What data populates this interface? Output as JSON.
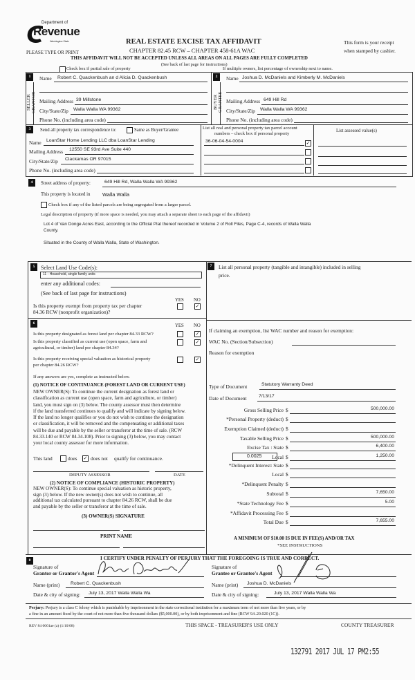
{
  "header": {
    "logo_text_1": "Department of",
    "logo_text_2": "Revenue",
    "logo_text_3": "Washington State",
    "please_type": "PLEASE TYPE OR PRINT",
    "title": "REAL ESTATE EXCISE TAX AFFIDAVIT",
    "chapter": "CHAPTER 82.45 RCW – CHAPTER 458-61A WAC",
    "receipt_1": "This form is your receipt",
    "receipt_2": "when stamped by cashier.",
    "warning": "THIS AFFIDAVIT WILL NOT BE ACCEPTED UNLESS ALL AREAS ON ALL PAGES ARE FULLY COMPLETED",
    "see_back": "(See back of last page for instructions)",
    "partial_sale_label": "Check box if partial sale of property",
    "partial_sale_checked": false,
    "multiple_owners": "If multiple owners, list percentage of ownership next to name."
  },
  "seller": {
    "number": "1",
    "side_label_1": "SELLER",
    "side_label_2": "GRANTOR",
    "name_label": "Name",
    "name": "Robert C. Quackenbush an d Alicia D. Quackenbush",
    "mailing_label": "Mailing Address",
    "mailing": "39 Millstone",
    "city_label": "City/State/Zip",
    "city": "Walla Walla WA 99362",
    "phone_label": "Phone No. (including area code)"
  },
  "buyer": {
    "number": "2",
    "side_label_1": "BUYER",
    "side_label_2": "GRANTEE",
    "name_label": "Name",
    "name": "Joshua D. McDaniels and Kimberly M. McDaniels",
    "mailing_label": "Mailing Address",
    "mailing": "649 Hill Rd",
    "city_label": "City/State/Zip",
    "city": "Walla Walla WA 99362",
    "phone_label": "Phone No. (including area code)"
  },
  "correspondence": {
    "number": "3",
    "send_label": "Send all property tax correspondence to:",
    "same_as_label": "Same as Buyer/Grantee",
    "same_as_checked": false,
    "name_label": "Name",
    "name": "LoanStar Home Lending LLC dba LoanStar Lending",
    "mailing_label": "Mailing Address",
    "mailing": "12550 SE 93rd Ave Suite 440",
    "city_label": "City/State/Zip",
    "city": "Clackamas OR 97015",
    "phone_label": "Phone No. (including area code)",
    "parcel_header_1": "List all real and personal property tax parcel account",
    "parcel_header_2": "numbers – check box if personal property",
    "assessed_header": "List assessed value(s)",
    "parcels": [
      {
        "number": "36-06-04-54-0004",
        "personal": true
      },
      {
        "number": "",
        "personal": false
      },
      {
        "number": "",
        "personal": false
      },
      {
        "number": "",
        "personal": false
      }
    ]
  },
  "property": {
    "number": "4",
    "street_label": "Street address of property:",
    "street": "649 Hill Rd, Walla Walla WA 99362",
    "located_label": "This property is located in",
    "located": "Walla Walla",
    "segregated_label": "Check box if any of the listed parcels are being segregated from a larger parcel.",
    "segregated_checked": false,
    "legal_label": "Legal description of property (if more space is needed, you may attach a separate sheet to each page of the affidavit)",
    "legal_1": "Lot 4 of Van Donge Acres East, according to the Official Plat thereof recorded in Volume 2 of Roll Files, Page C-4, records of Walla Walla",
    "legal_2": "County.",
    "legal_3": "Situated in the County of Walla Walla, State of Washington."
  },
  "land_use": {
    "number": "5",
    "select_label": "Select Land Use Code(s):",
    "code": "11 - Household, single family units",
    "additional_label": "enter any additional codes:",
    "see_back": "(See back of last page for instructions)",
    "yes": "YES",
    "no": "NO",
    "exempt_q_1": "Is this property exempt from property tax per chapter",
    "exempt_q_2": "84.36 RCW (nonprofit organization)?",
    "exempt_answer": "no"
  },
  "designation": {
    "number": "6",
    "yes": "YES",
    "no": "NO",
    "q1": "Is this property designated as forest land per chapter 84.33 RCW?",
    "q2_1": "Is this property classified as current use (open space, farm and",
    "q2_2": "agricultural, or timber) land per chapter 84.34?",
    "q3_1": "Is this property receiving special valuation as historical property",
    "q3_2": "per chapter 84.26 RCW?",
    "answers": [
      "no",
      "no",
      "no"
    ],
    "if_yes": "If any answers are yes, complete as instructed below.",
    "notice1_title": "(1) NOTICE OF CONTINUANCE  (FOREST LAND OR CURRENT USE)",
    "notice1_lines": [
      "NEW OWNER(S): To continue the current designation as forest land or",
      "classification as current use (open space, farm and agriculture, or timber)",
      "land, you must sign on (3) below. The county assessor must then determine",
      "if the land transferred continues to qualify and will indicate by signing below.",
      "If the land no longer qualifies or you do not wish to continue the designation",
      "or classification, it will be removed and the compensating or additional taxes",
      "will be due and payable by the seller or transferor at the time of sale. (RCW",
      "84.33.140 or RCW 84.34.108). Prior to signing (3) below, you may contact",
      "your local county assessor for more information."
    ],
    "this_land": "This land",
    "does": "does",
    "does_not": "does not",
    "qualify": "qualify for continuance.",
    "continuance": "does not",
    "deputy_assessor": "DEPUTY ASSESSOR",
    "date": "DATE",
    "notice2_title": "(2) NOTICE OF COMPLIANCE (HISTORIC PROPERTY)",
    "notice2_lines": [
      "NEW OWNER(S): To continue special valuation as historic property,",
      "sign (3) below. If the new owner(s) does not wish to continue, all",
      "additional tax calculated pursuant to chapter 84.26 RCW, shall be due",
      "and payable by the seller or transferor at the time of sale."
    ],
    "owner_signature": "(3)  OWNER(S) SIGNATURE",
    "print_name": "PRINT NAME"
  },
  "personal_property": {
    "number": "7",
    "label_1": "List all  personal property (tangible and intangible) included in selling",
    "label_2": "price.",
    "exemption_label": "If claiming an exemption, list WAC number and reason for exemption:",
    "wac_label": "WAC No. (Section/Subsection)",
    "reason_label": "Reason for exemption"
  },
  "document": {
    "type_label": "Type of Document",
    "type": "Statutory Warranty Deed",
    "date_label": "Date of Document",
    "date": "7/13/17",
    "local_rate": "0.0025",
    "amounts": [
      {
        "label": "Gross Selling Price",
        "value": "500,000.00"
      },
      {
        "label": "*Personal Property (deduct)",
        "value": ""
      },
      {
        "label": "Exemption Claimed (deduct)",
        "value": ""
      },
      {
        "label": "Taxable Selling Price",
        "value": "500,000.00"
      },
      {
        "label": "Excise Tax : State",
        "value": "6,400.00"
      },
      {
        "label": "Local",
        "value": "1,250.00"
      },
      {
        "label": "*Delinquent Interest: State",
        "value": ""
      },
      {
        "label": "Local",
        "value": ""
      },
      {
        "label": "*Delinquent Penalty",
        "value": ""
      },
      {
        "label": "Subtotal",
        "value": "7,650.00"
      },
      {
        "label": "*State Technology Fee",
        "value": "5.00"
      },
      {
        "label": "*Affidavit Processing Fee",
        "value": ""
      },
      {
        "label": "Total Due",
        "value": "7,655.00"
      }
    ],
    "currency": "$",
    "minimum": "A MINIMUM OF $10.00 IS DUE IN FEE(S) AND/OR TAX",
    "see_instructions": "*SEE INSTRUCTIONS"
  },
  "certification": {
    "number": "8",
    "statement": "I CERTIFY UNDER PENALTY OF PERJURY THAT THE FOREGOING IS TRUE AND CORRECT.",
    "grantor_sig_1": "Signature of",
    "grantor_sig_2": "Grantor or Grantor's Agent",
    "grantor_name_label": "Name (print)",
    "grantor_name": "Robert C. Quackenbush",
    "grantor_date_label": "Date & city of signing:",
    "grantor_date": "July 13, 2017 Walla Walla Wa",
    "grantee_sig_1": "Signature of",
    "grantee_sig_2": "Grantee or Grantee's Agent",
    "grantee_name_label": "Name (print)",
    "grantee_name": "Joshua D. McDaniels",
    "grantee_date_label": "Date & city of signing:",
    "grantee_date": "July 13, 2017 Walla Walla Wa"
  },
  "footer": {
    "perjury_bold": "Perjury:",
    "perjury_1": "Perjury is a class C felony which is punishable by imprisonment in the state correctional institution for a maximum term of not more than five years, or by",
    "perjury_2": "a fine in an amount fixed by the court of not more than five thousand dollars ($5,000.00), or by both imprisonment and fine (RCW 9A.20.020 (1C)).",
    "rev": "REV 84 0001ae (a) (1/10/08)",
    "treasurer_use": "THIS SPACE - TREASURER'S USE ONLY",
    "county_treasurer": "COUNTY TREASURER",
    "stamp": "132791 2017 JUL 17 PM2:55"
  }
}
